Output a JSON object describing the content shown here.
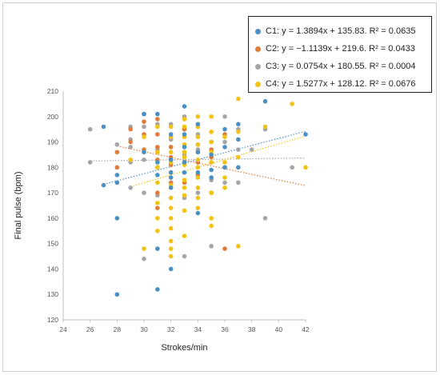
{
  "chart_data": {
    "type": "scatter",
    "xlabel": "Strokes/min",
    "ylabel": "Final pulse (bpm)",
    "xlim": [
      24,
      42
    ],
    "ylim": [
      120,
      210
    ],
    "x_ticks": [
      24,
      26,
      28,
      30,
      32,
      34,
      36,
      38,
      40,
      42
    ],
    "y_ticks": [
      120,
      130,
      140,
      150,
      160,
      170,
      180,
      190,
      200,
      210
    ],
    "grid": false,
    "legend_position": "top-right",
    "series": [
      {
        "name": "C1",
        "legend_text": "C1: y = 1.3894x + 135.83. R² = 0.0635",
        "color": "#4a90c4",
        "trend": {
          "slope": 1.3894,
          "intercept": 135.83
        },
        "points": [
          [
            27,
            173
          ],
          [
            27,
            196
          ],
          [
            28,
            177
          ],
          [
            28,
            174
          ],
          [
            28,
            160
          ],
          [
            28,
            130
          ],
          [
            30,
            186
          ],
          [
            30,
            201
          ],
          [
            31,
            201
          ],
          [
            31,
            182
          ],
          [
            31,
            177
          ],
          [
            31,
            148
          ],
          [
            31,
            132
          ],
          [
            32,
            193
          ],
          [
            32,
            183
          ],
          [
            32,
            178
          ],
          [
            32,
            176
          ],
          [
            32,
            172
          ],
          [
            32,
            140
          ],
          [
            33,
            204
          ],
          [
            33,
            193
          ],
          [
            33,
            188
          ],
          [
            33,
            182
          ],
          [
            33,
            178
          ],
          [
            34,
            197
          ],
          [
            34,
            186
          ],
          [
            34,
            178
          ],
          [
            34,
            162
          ],
          [
            35,
            185
          ],
          [
            35,
            179
          ],
          [
            35,
            176
          ],
          [
            36,
            195
          ],
          [
            36,
            188
          ],
          [
            36,
            180
          ],
          [
            37,
            197
          ],
          [
            37,
            191
          ],
          [
            37,
            180
          ],
          [
            39,
            206
          ],
          [
            42,
            193
          ]
        ]
      },
      {
        "name": "C2",
        "legend_text": "C2: y = −1.1139x + 219.6. R² = 0.0433",
        "color": "#e07b39",
        "trend": {
          "slope": -1.1139,
          "intercept": 219.6
        },
        "points": [
          [
            28,
            186
          ],
          [
            28,
            180
          ],
          [
            29,
            195
          ],
          [
            29,
            190
          ],
          [
            30,
            201
          ],
          [
            30,
            198
          ],
          [
            30,
            193
          ],
          [
            30,
            187
          ],
          [
            31,
            199
          ],
          [
            31,
            193
          ],
          [
            31,
            188
          ],
          [
            31,
            183
          ],
          [
            31,
            170
          ],
          [
            31,
            164
          ],
          [
            32,
            192
          ],
          [
            32,
            188
          ],
          [
            32,
            184
          ],
          [
            32,
            181
          ],
          [
            32,
            174
          ],
          [
            33,
            199
          ],
          [
            33,
            195
          ],
          [
            33,
            186
          ],
          [
            33,
            182
          ],
          [
            33,
            174
          ],
          [
            34,
            196
          ],
          [
            34,
            189
          ],
          [
            34,
            182
          ],
          [
            34,
            177
          ],
          [
            35,
            187
          ],
          [
            35,
            184
          ],
          [
            35,
            170
          ],
          [
            36,
            193
          ],
          [
            36,
            180
          ],
          [
            36,
            148
          ]
        ]
      },
      {
        "name": "C3",
        "legend_text": "C3: y = 0.0754x + 180.55. R² = 0.0004",
        "color": "#a5a5a5",
        "trend": {
          "slope": 0.0754,
          "intercept": 180.55
        },
        "points": [
          [
            26,
            195
          ],
          [
            26,
            182
          ],
          [
            28,
            189
          ],
          [
            29,
            196
          ],
          [
            29,
            191
          ],
          [
            29,
            188
          ],
          [
            29,
            182
          ],
          [
            29,
            172
          ],
          [
            30,
            196
          ],
          [
            30,
            183
          ],
          [
            30,
            170
          ],
          [
            30,
            144
          ],
          [
            31,
            197
          ],
          [
            31,
            187
          ],
          [
            31,
            180
          ],
          [
            31,
            169
          ],
          [
            32,
            197
          ],
          [
            32,
            191
          ],
          [
            32,
            183
          ],
          [
            32,
            178
          ],
          [
            33,
            200
          ],
          [
            33,
            195
          ],
          [
            33,
            185
          ],
          [
            33,
            178
          ],
          [
            33,
            168
          ],
          [
            33,
            145
          ],
          [
            34,
            193
          ],
          [
            34,
            187
          ],
          [
            34,
            182
          ],
          [
            34,
            170
          ],
          [
            35,
            190
          ],
          [
            35,
            182
          ],
          [
            35,
            175
          ],
          [
            35,
            149
          ],
          [
            36,
            200
          ],
          [
            36,
            190
          ],
          [
            36,
            174
          ],
          [
            37,
            195
          ],
          [
            37,
            187
          ],
          [
            37,
            174
          ],
          [
            38,
            187
          ],
          [
            39,
            195
          ],
          [
            39,
            160
          ],
          [
            41,
            180
          ]
        ]
      },
      {
        "name": "C4",
        "legend_text": "C4: y = 1.5277x + 128.12. R² = 0.0676",
        "color": "#f2c314",
        "trend": {
          "slope": 1.5277,
          "intercept": 128.12
        },
        "points": [
          [
            29,
            183
          ],
          [
            30,
            192
          ],
          [
            30,
            148
          ],
          [
            31,
            196
          ],
          [
            31,
            186
          ],
          [
            31,
            180
          ],
          [
            31,
            174
          ],
          [
            31,
            166
          ],
          [
            31,
            160
          ],
          [
            31,
            155
          ],
          [
            31,
            148
          ],
          [
            32,
            196
          ],
          [
            32,
            192
          ],
          [
            32,
            186
          ],
          [
            32,
            182
          ],
          [
            32,
            178
          ],
          [
            32,
            173
          ],
          [
            32,
            168
          ],
          [
            32,
            164
          ],
          [
            32,
            160
          ],
          [
            32,
            156
          ],
          [
            32,
            151
          ],
          [
            32,
            148
          ],
          [
            32,
            145
          ],
          [
            33,
            199
          ],
          [
            33,
            196
          ],
          [
            33,
            192
          ],
          [
            33,
            189
          ],
          [
            33,
            186
          ],
          [
            33,
            184
          ],
          [
            33,
            181
          ],
          [
            33,
            178
          ],
          [
            33,
            175
          ],
          [
            33,
            172
          ],
          [
            33,
            169
          ],
          [
            33,
            163
          ],
          [
            33,
            153
          ],
          [
            34,
            200
          ],
          [
            34,
            196
          ],
          [
            34,
            192
          ],
          [
            34,
            189
          ],
          [
            34,
            186
          ],
          [
            34,
            183
          ],
          [
            34,
            180
          ],
          [
            34,
            176
          ],
          [
            34,
            172
          ],
          [
            34,
            168
          ],
          [
            34,
            164
          ],
          [
            35,
            200
          ],
          [
            35,
            194
          ],
          [
            35,
            190
          ],
          [
            35,
            186
          ],
          [
            35,
            182
          ],
          [
            35,
            176
          ],
          [
            35,
            170
          ],
          [
            35,
            160
          ],
          [
            35,
            157
          ],
          [
            36,
            192
          ],
          [
            36,
            182
          ],
          [
            36,
            176
          ],
          [
            36,
            172
          ],
          [
            37,
            207
          ],
          [
            37,
            194
          ],
          [
            37,
            184
          ],
          [
            37,
            149
          ],
          [
            39,
            196
          ],
          [
            41,
            205
          ],
          [
            42,
            180
          ]
        ]
      }
    ]
  }
}
